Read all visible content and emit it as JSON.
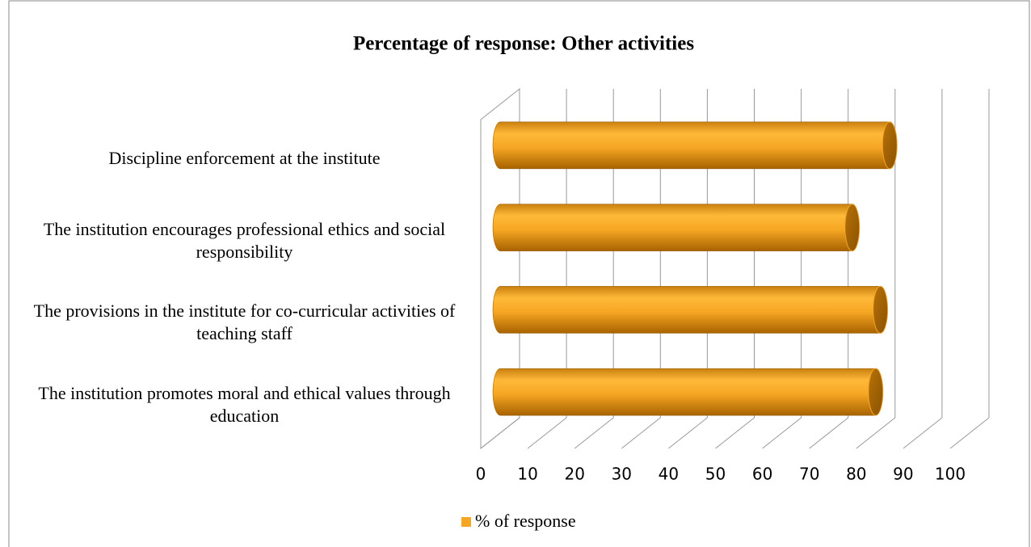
{
  "chart_data": {
    "type": "bar3d",
    "orientation": "horizontal",
    "title": "Percentage of response: Other activities",
    "categories": [
      "Discipline enforcement at the institute",
      "The institution encourages professional ethics and social responsibility",
      "The provisions in the institute for co-curricular activities of teaching staff",
      "The institution promotes moral and ethical values through education"
    ],
    "series": [
      {
        "name": "% of response",
        "color": "#f5a623",
        "values": [
          83,
          75,
          81,
          80
        ]
      }
    ],
    "xlim": [
      0,
      100
    ],
    "xticks": [
      0,
      10,
      20,
      30,
      40,
      50,
      60,
      70,
      80,
      90,
      100
    ],
    "grid": true,
    "legend": "bottom"
  }
}
